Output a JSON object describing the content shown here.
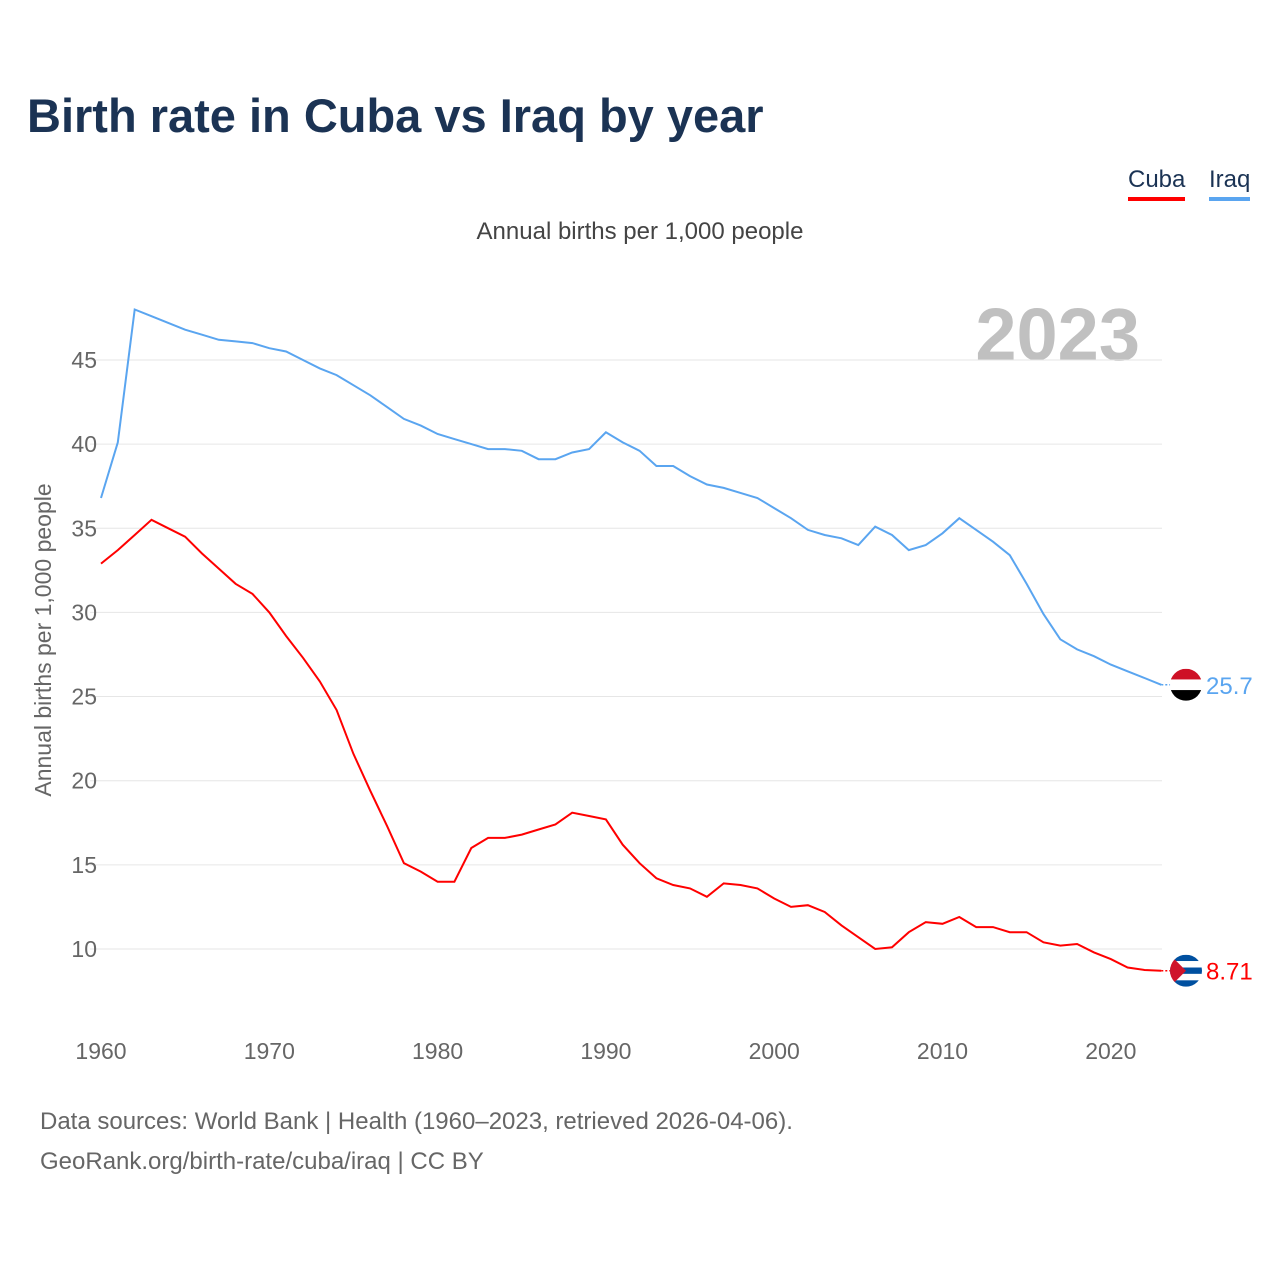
{
  "title": "Birth rate in Cuba vs Iraq by year",
  "legend": [
    {
      "name": "Cuba",
      "color": "#ff0000"
    },
    {
      "name": "Iraq",
      "color": "#5aa5f0"
    }
  ],
  "source_line1": "Data sources: World Bank | Health (1960–2023, retrieved 2026-04-06).",
  "source_line2": "GeoRank.org/birth-rate/cuba/iraq | CC BY",
  "chart_data": {
    "type": "line",
    "title": "Birth rate in Cuba vs Iraq by year",
    "subtitle": "Annual births per 1,000 people",
    "ylabel": "Annual births per 1,000 people",
    "xlabel": "",
    "year_label": "2023",
    "xlim": [
      1960,
      2023
    ],
    "ylim": [
      6,
      50
    ],
    "xticks": [
      1960,
      1970,
      1980,
      1990,
      2000,
      2010,
      2020
    ],
    "yticks": [
      10,
      15,
      20,
      25,
      30,
      35,
      40,
      45
    ],
    "grid": true,
    "legend_position": "top-right",
    "x": [
      1960,
      1961,
      1962,
      1963,
      1964,
      1965,
      1966,
      1967,
      1968,
      1969,
      1970,
      1971,
      1972,
      1973,
      1974,
      1975,
      1976,
      1977,
      1978,
      1979,
      1980,
      1981,
      1982,
      1983,
      1984,
      1985,
      1986,
      1987,
      1988,
      1989,
      1990,
      1991,
      1992,
      1993,
      1994,
      1995,
      1996,
      1997,
      1998,
      1999,
      2000,
      2001,
      2002,
      2003,
      2004,
      2005,
      2006,
      2007,
      2008,
      2009,
      2010,
      2011,
      2012,
      2013,
      2014,
      2015,
      2016,
      2017,
      2018,
      2019,
      2020,
      2021,
      2022,
      2023
    ],
    "series": [
      {
        "name": "Cuba",
        "color": "#ff0000",
        "end_label": "8.71",
        "values": [
          32.9,
          33.7,
          34.6,
          35.5,
          35.0,
          34.5,
          33.5,
          32.6,
          31.7,
          31.1,
          30.0,
          28.6,
          27.3,
          25.9,
          24.2,
          21.6,
          19.4,
          17.3,
          15.1,
          14.6,
          14.0,
          14.0,
          16.0,
          16.6,
          16.6,
          16.8,
          17.1,
          17.4,
          18.1,
          17.9,
          17.7,
          16.2,
          15.1,
          14.2,
          13.8,
          13.6,
          13.1,
          13.9,
          13.8,
          13.6,
          13.0,
          12.5,
          12.6,
          12.2,
          11.4,
          10.7,
          10.0,
          10.1,
          11.0,
          11.6,
          11.5,
          11.9,
          11.3,
          11.3,
          11.0,
          11.0,
          10.4,
          10.2,
          10.3,
          9.8,
          9.4,
          8.9,
          8.75,
          8.71
        ]
      },
      {
        "name": "Iraq",
        "color": "#5aa5f0",
        "end_label": "25.7",
        "values": [
          36.8,
          40.1,
          48.0,
          47.6,
          47.2,
          46.8,
          46.5,
          46.2,
          46.1,
          46.0,
          45.7,
          45.5,
          45.0,
          44.5,
          44.1,
          43.5,
          42.9,
          42.2,
          41.5,
          41.1,
          40.6,
          40.3,
          40.0,
          39.7,
          39.7,
          39.6,
          39.1,
          39.1,
          39.5,
          39.7,
          40.7,
          40.1,
          39.6,
          38.7,
          38.7,
          38.1,
          37.6,
          37.4,
          37.1,
          36.8,
          36.2,
          35.6,
          34.9,
          34.6,
          34.4,
          34.0,
          35.1,
          34.6,
          33.7,
          34.0,
          34.7,
          35.6,
          34.9,
          34.2,
          33.4,
          31.7,
          29.9,
          28.4,
          27.8,
          27.4,
          26.9,
          26.5,
          26.1,
          25.7
        ]
      }
    ]
  }
}
